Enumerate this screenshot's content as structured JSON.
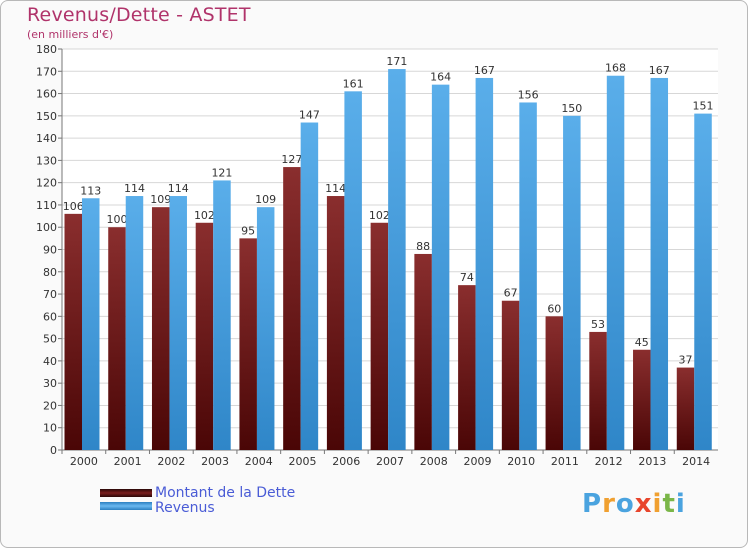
{
  "header": {
    "title": "Revenus/Dette - ASTET",
    "subtitle": "(en milliers d'€)"
  },
  "chart_data": {
    "type": "bar",
    "categories": [
      "2000",
      "2001",
      "2002",
      "2003",
      "2004",
      "2005",
      "2006",
      "2007",
      "2008",
      "2009",
      "2010",
      "2011",
      "2012",
      "2013",
      "2014"
    ],
    "series": [
      {
        "name": "Montant de la Dette",
        "values": [
          106,
          100,
          109,
          102,
          95,
          127,
          114,
          102,
          88,
          74,
          67,
          60,
          53,
          45,
          37
        ],
        "color": "#7a1f1f"
      },
      {
        "name": "Revenus",
        "values": [
          113,
          114,
          114,
          121,
          109,
          147,
          161,
          171,
          164,
          167,
          156,
          150,
          168,
          167,
          151
        ],
        "color": "#4ba3e3"
      }
    ],
    "ylim": [
      0,
      180
    ],
    "ytick_step": 10,
    "grid": true,
    "legend_position": "bottom-left"
  },
  "legend": {
    "items": [
      {
        "label": "Montant de la Dette"
      },
      {
        "label": "Revenus"
      }
    ]
  },
  "logo": {
    "text": "Proxiti",
    "colors": [
      "#4aa3df",
      "#f0a030",
      "#4aa3df",
      "#e8452c",
      "#f0a030",
      "#7ab648",
      "#4aa3df"
    ]
  }
}
